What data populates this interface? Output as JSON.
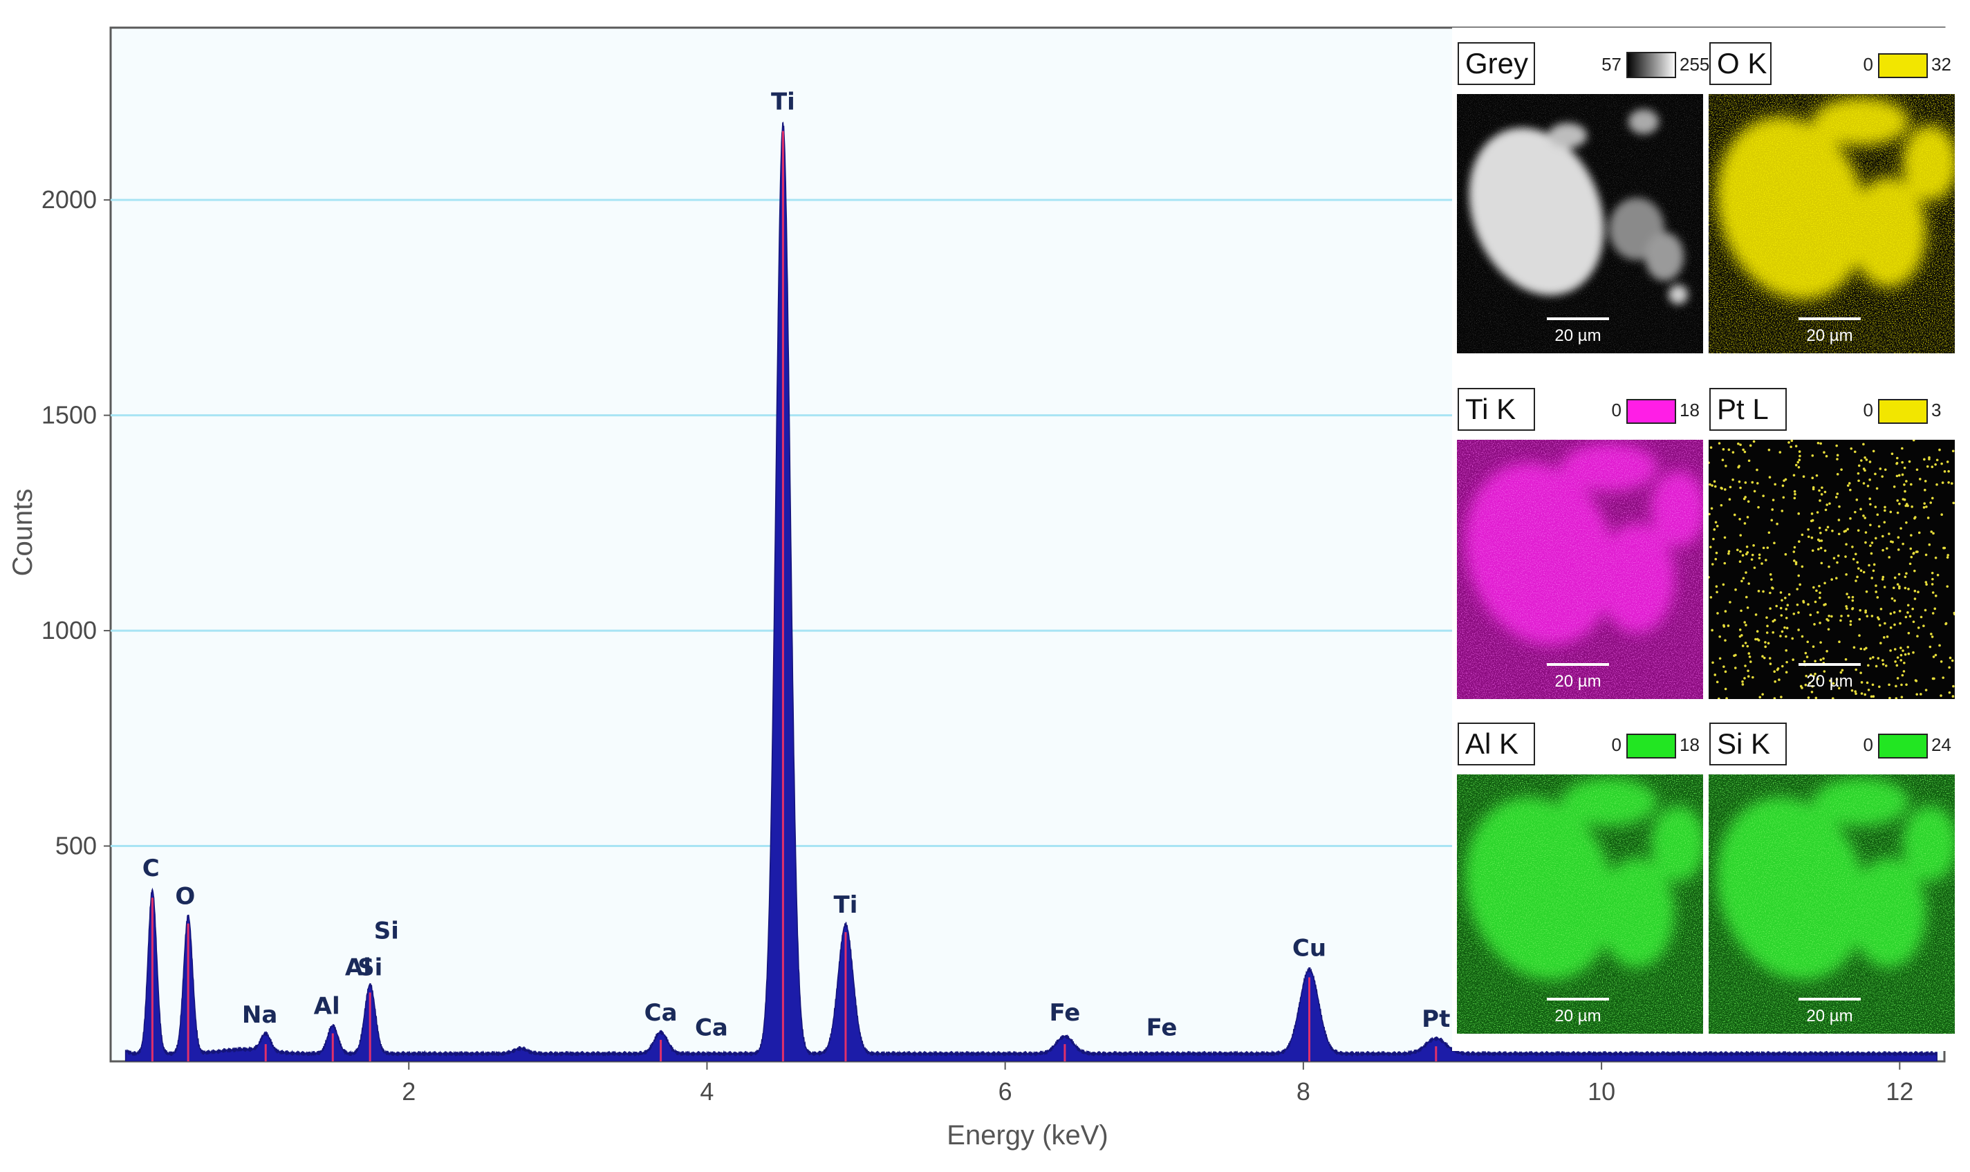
{
  "chart_data": {
    "type": "area",
    "xlabel": "Energy (keV)",
    "ylabel": "Counts",
    "xlim": [
      0,
      12.3
    ],
    "ylim": [
      0,
      2400
    ],
    "x_ticks": [
      2,
      4,
      6,
      8,
      10,
      12
    ],
    "y_ticks": [
      500,
      1000,
      1500,
      2000
    ],
    "grid": "horizontal",
    "colors": {
      "fill": "#1c1ca8",
      "peak_line": "#e0306a",
      "grid": "#a8e4f4",
      "plot_bg": "#f6fcfe"
    },
    "peaks": [
      {
        "element": "C",
        "energy": 0.28,
        "counts": 380
      },
      {
        "element": "O",
        "energy": 0.52,
        "counts": 320
      },
      {
        "element": "Na",
        "energy": 1.04,
        "counts": 40
      },
      {
        "element": "Al",
        "energy": 1.49,
        "counts": 65
      },
      {
        "element": "Si",
        "energy": 1.74,
        "counts": 160
      },
      {
        "element": "Ca",
        "energy": 3.69,
        "counts": 50
      },
      {
        "element": "Ti",
        "energy": 4.51,
        "counts": 2160
      },
      {
        "element": "Ti",
        "energy": 4.93,
        "counts": 300
      },
      {
        "element": "Fe",
        "energy": 6.4,
        "counts": 40
      },
      {
        "element": "Cu",
        "energy": 8.04,
        "counts": 195
      },
      {
        "element": "Pt",
        "energy": 8.89,
        "counts": 35
      }
    ],
    "annotations": [
      {
        "text": "C",
        "x": 0.27,
        "y": 430
      },
      {
        "text": "O",
        "x": 0.5,
        "y": 365
      },
      {
        "text": "Na",
        "x": 1.0,
        "y": 90
      },
      {
        "text": "Al",
        "x": 1.45,
        "y": 110
      },
      {
        "text": "Al",
        "x": 1.66,
        "y": 200
      },
      {
        "text": "Si",
        "x": 1.85,
        "y": 285
      },
      {
        "text": "Si",
        "x": 1.74,
        "y": 200
      },
      {
        "text": "Ca",
        "x": 3.69,
        "y": 95
      },
      {
        "text": "Ca",
        "x": 4.03,
        "y": 60
      },
      {
        "text": "Ti",
        "x": 4.51,
        "y": 2210
      },
      {
        "text": "Ti",
        "x": 4.93,
        "y": 345
      },
      {
        "text": "Fe",
        "x": 6.4,
        "y": 95
      },
      {
        "text": "Fe",
        "x": 7.05,
        "y": 60
      },
      {
        "text": "Cu",
        "x": 8.04,
        "y": 245
      },
      {
        "text": "Pt",
        "x": 8.89,
        "y": 80
      }
    ]
  },
  "maps": [
    {
      "label": "Grey",
      "scale_min": "57",
      "scale_max": "255",
      "scale_color": "#ffffff",
      "scalebar": "20 µm",
      "kind": "grey"
    },
    {
      "label": "O K",
      "scale_min": "0",
      "scale_max": "32",
      "scale_color": "#f2e600",
      "scalebar": "20 µm",
      "kind": "yellow"
    },
    {
      "label": "Ti K",
      "scale_min": "0",
      "scale_max": "18",
      "scale_color": "#ff1ee6",
      "scalebar": "20 µm",
      "kind": "magenta"
    },
    {
      "label": "Pt L",
      "scale_min": "0",
      "scale_max": "3",
      "scale_color": "#f2e600",
      "scalebar": "20 µm",
      "kind": "dots"
    },
    {
      "label": "Al K",
      "scale_min": "0",
      "scale_max": "18",
      "scale_color": "#22e622",
      "scalebar": "20 µm",
      "kind": "green"
    },
    {
      "label": "Si K",
      "scale_min": "0",
      "scale_max": "24",
      "scale_color": "#22e622",
      "scalebar": "20 µm",
      "kind": "green2"
    }
  ]
}
